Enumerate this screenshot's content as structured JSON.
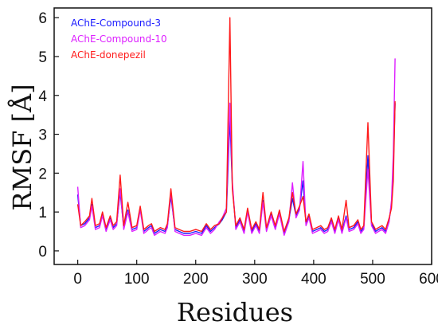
{
  "chart_data": {
    "type": "line",
    "title": "",
    "xlabel": "Residues",
    "ylabel": "RMSF [Å]",
    "xlim": [
      -40,
      600
    ],
    "ylim": [
      -0.35,
      6.25
    ],
    "xticks": [
      0,
      100,
      200,
      300,
      400,
      500,
      600
    ],
    "yticks": [
      0,
      1,
      2,
      3,
      4,
      5,
      6
    ],
    "grid": false,
    "legend_position": "top-left",
    "series": [
      {
        "name": "AChE-Compound-3",
        "color": "#1a1aff",
        "points": [
          [
            0,
            1.45
          ],
          [
            5,
            0.65
          ],
          [
            12,
            0.7
          ],
          [
            20,
            0.85
          ],
          [
            24,
            1.2
          ],
          [
            30,
            0.6
          ],
          [
            37,
            0.65
          ],
          [
            42,
            0.95
          ],
          [
            48,
            0.55
          ],
          [
            55,
            0.85
          ],
          [
            60,
            0.6
          ],
          [
            66,
            0.7
          ],
          [
            72,
            1.5
          ],
          [
            78,
            0.6
          ],
          [
            85,
            1.05
          ],
          [
            92,
            0.55
          ],
          [
            100,
            0.6
          ],
          [
            106,
            1.1
          ],
          [
            112,
            0.5
          ],
          [
            120,
            0.6
          ],
          [
            125,
            0.65
          ],
          [
            130,
            0.45
          ],
          [
            140,
            0.55
          ],
          [
            148,
            0.5
          ],
          [
            152,
            0.65
          ],
          [
            158,
            1.4
          ],
          [
            165,
            0.55
          ],
          [
            172,
            0.5
          ],
          [
            180,
            0.45
          ],
          [
            190,
            0.45
          ],
          [
            200,
            0.5
          ],
          [
            210,
            0.45
          ],
          [
            218,
            0.65
          ],
          [
            225,
            0.5
          ],
          [
            232,
            0.6
          ],
          [
            240,
            0.7
          ],
          [
            245,
            0.8
          ],
          [
            252,
            1.0
          ],
          [
            258,
            3.4
          ],
          [
            262,
            1.7
          ],
          [
            268,
            0.6
          ],
          [
            275,
            0.8
          ],
          [
            282,
            0.5
          ],
          [
            288,
            1.05
          ],
          [
            295,
            0.5
          ],
          [
            302,
            0.7
          ],
          [
            308,
            0.5
          ],
          [
            314,
            1.3
          ],
          [
            320,
            0.55
          ],
          [
            328,
            0.95
          ],
          [
            335,
            0.6
          ],
          [
            342,
            1.0
          ],
          [
            350,
            0.45
          ],
          [
            358,
            0.8
          ],
          [
            364,
            1.35
          ],
          [
            370,
            0.9
          ],
          [
            376,
            1.1
          ],
          [
            382,
            1.8
          ],
          [
            387,
            0.7
          ],
          [
            392,
            0.9
          ],
          [
            398,
            0.5
          ],
          [
            405,
            0.55
          ],
          [
            412,
            0.6
          ],
          [
            418,
            0.5
          ],
          [
            424,
            0.55
          ],
          [
            430,
            0.8
          ],
          [
            436,
            0.5
          ],
          [
            442,
            0.85
          ],
          [
            448,
            0.5
          ],
          [
            455,
            0.9
          ],
          [
            460,
            0.55
          ],
          [
            468,
            0.6
          ],
          [
            475,
            0.75
          ],
          [
            480,
            0.5
          ],
          [
            485,
            0.6
          ],
          [
            492,
            2.45
          ],
          [
            498,
            0.7
          ],
          [
            505,
            0.5
          ],
          [
            510,
            0.55
          ],
          [
            516,
            0.6
          ],
          [
            522,
            0.5
          ],
          [
            528,
            0.8
          ],
          [
            532,
            1.2
          ],
          [
            535,
            2.2
          ],
          [
            538,
            3.8
          ]
        ]
      },
      {
        "name": "AChE-Compound-10",
        "color": "#dd1fff",
        "points": [
          [
            0,
            1.65
          ],
          [
            5,
            0.6
          ],
          [
            12,
            0.65
          ],
          [
            20,
            0.8
          ],
          [
            24,
            1.15
          ],
          [
            30,
            0.55
          ],
          [
            37,
            0.6
          ],
          [
            42,
            0.9
          ],
          [
            48,
            0.5
          ],
          [
            55,
            0.8
          ],
          [
            60,
            0.55
          ],
          [
            66,
            0.65
          ],
          [
            72,
            1.6
          ],
          [
            78,
            0.55
          ],
          [
            85,
            1.0
          ],
          [
            92,
            0.5
          ],
          [
            100,
            0.55
          ],
          [
            106,
            1.05
          ],
          [
            112,
            0.45
          ],
          [
            120,
            0.55
          ],
          [
            125,
            0.6
          ],
          [
            130,
            0.4
          ],
          [
            140,
            0.5
          ],
          [
            148,
            0.45
          ],
          [
            152,
            0.6
          ],
          [
            158,
            1.5
          ],
          [
            165,
            0.5
          ],
          [
            172,
            0.45
          ],
          [
            180,
            0.4
          ],
          [
            190,
            0.4
          ],
          [
            200,
            0.45
          ],
          [
            210,
            0.4
          ],
          [
            218,
            0.6
          ],
          [
            225,
            0.45
          ],
          [
            232,
            0.55
          ],
          [
            240,
            0.75
          ],
          [
            245,
            0.85
          ],
          [
            252,
            1.1
          ],
          [
            258,
            3.8
          ],
          [
            262,
            1.8
          ],
          [
            268,
            0.55
          ],
          [
            275,
            0.75
          ],
          [
            282,
            0.45
          ],
          [
            288,
            1.0
          ],
          [
            295,
            0.45
          ],
          [
            302,
            0.65
          ],
          [
            308,
            0.45
          ],
          [
            314,
            1.25
          ],
          [
            320,
            0.5
          ],
          [
            328,
            0.9
          ],
          [
            335,
            0.55
          ],
          [
            342,
            0.95
          ],
          [
            350,
            0.4
          ],
          [
            358,
            0.75
          ],
          [
            364,
            1.75
          ],
          [
            370,
            0.85
          ],
          [
            376,
            1.05
          ],
          [
            382,
            2.3
          ],
          [
            387,
            0.65
          ],
          [
            392,
            0.85
          ],
          [
            398,
            0.45
          ],
          [
            405,
            0.5
          ],
          [
            412,
            0.55
          ],
          [
            418,
            0.45
          ],
          [
            424,
            0.5
          ],
          [
            430,
            0.75
          ],
          [
            436,
            0.45
          ],
          [
            442,
            0.8
          ],
          [
            448,
            0.45
          ],
          [
            455,
            0.85
          ],
          [
            460,
            0.5
          ],
          [
            468,
            0.55
          ],
          [
            475,
            0.7
          ],
          [
            480,
            0.45
          ],
          [
            485,
            0.55
          ],
          [
            492,
            2.1
          ],
          [
            498,
            0.65
          ],
          [
            505,
            0.45
          ],
          [
            510,
            0.5
          ],
          [
            516,
            0.55
          ],
          [
            522,
            0.45
          ],
          [
            528,
            0.75
          ],
          [
            532,
            1.3
          ],
          [
            535,
            2.5
          ],
          [
            538,
            4.95
          ]
        ]
      },
      {
        "name": "AChE-donepezil",
        "color": "#ff1a1a",
        "points": [
          [
            0,
            1.2
          ],
          [
            5,
            0.65
          ],
          [
            12,
            0.75
          ],
          [
            20,
            0.9
          ],
          [
            24,
            1.35
          ],
          [
            30,
            0.65
          ],
          [
            37,
            0.7
          ],
          [
            42,
            1.0
          ],
          [
            48,
            0.6
          ],
          [
            55,
            0.9
          ],
          [
            60,
            0.65
          ],
          [
            66,
            0.75
          ],
          [
            72,
            1.95
          ],
          [
            78,
            0.65
          ],
          [
            85,
            1.25
          ],
          [
            92,
            0.6
          ],
          [
            100,
            0.65
          ],
          [
            106,
            1.15
          ],
          [
            112,
            0.55
          ],
          [
            120,
            0.65
          ],
          [
            125,
            0.7
          ],
          [
            130,
            0.5
          ],
          [
            140,
            0.6
          ],
          [
            148,
            0.55
          ],
          [
            152,
            0.7
          ],
          [
            158,
            1.6
          ],
          [
            165,
            0.6
          ],
          [
            172,
            0.55
          ],
          [
            180,
            0.5
          ],
          [
            190,
            0.5
          ],
          [
            200,
            0.55
          ],
          [
            210,
            0.5
          ],
          [
            218,
            0.7
          ],
          [
            225,
            0.55
          ],
          [
            232,
            0.65
          ],
          [
            240,
            0.7
          ],
          [
            245,
            0.85
          ],
          [
            252,
            1.0
          ],
          [
            258,
            6.0
          ],
          [
            262,
            1.6
          ],
          [
            268,
            0.65
          ],
          [
            275,
            0.85
          ],
          [
            282,
            0.55
          ],
          [
            288,
            1.1
          ],
          [
            295,
            0.55
          ],
          [
            302,
            0.75
          ],
          [
            308,
            0.55
          ],
          [
            314,
            1.5
          ],
          [
            320,
            0.6
          ],
          [
            328,
            1.0
          ],
          [
            335,
            0.65
          ],
          [
            342,
            1.05
          ],
          [
            350,
            0.5
          ],
          [
            358,
            0.85
          ],
          [
            364,
            1.5
          ],
          [
            370,
            0.95
          ],
          [
            376,
            1.15
          ],
          [
            382,
            1.4
          ],
          [
            387,
            0.75
          ],
          [
            392,
            0.95
          ],
          [
            398,
            0.55
          ],
          [
            405,
            0.6
          ],
          [
            412,
            0.65
          ],
          [
            418,
            0.55
          ],
          [
            424,
            0.6
          ],
          [
            430,
            0.85
          ],
          [
            436,
            0.55
          ],
          [
            442,
            0.9
          ],
          [
            448,
            0.55
          ],
          [
            455,
            1.3
          ],
          [
            460,
            0.6
          ],
          [
            468,
            0.65
          ],
          [
            475,
            0.8
          ],
          [
            480,
            0.55
          ],
          [
            485,
            0.65
          ],
          [
            492,
            3.3
          ],
          [
            498,
            0.75
          ],
          [
            505,
            0.55
          ],
          [
            510,
            0.6
          ],
          [
            516,
            0.65
          ],
          [
            522,
            0.55
          ],
          [
            528,
            0.85
          ],
          [
            532,
            1.1
          ],
          [
            535,
            1.8
          ],
          [
            538,
            3.85
          ]
        ]
      }
    ]
  }
}
